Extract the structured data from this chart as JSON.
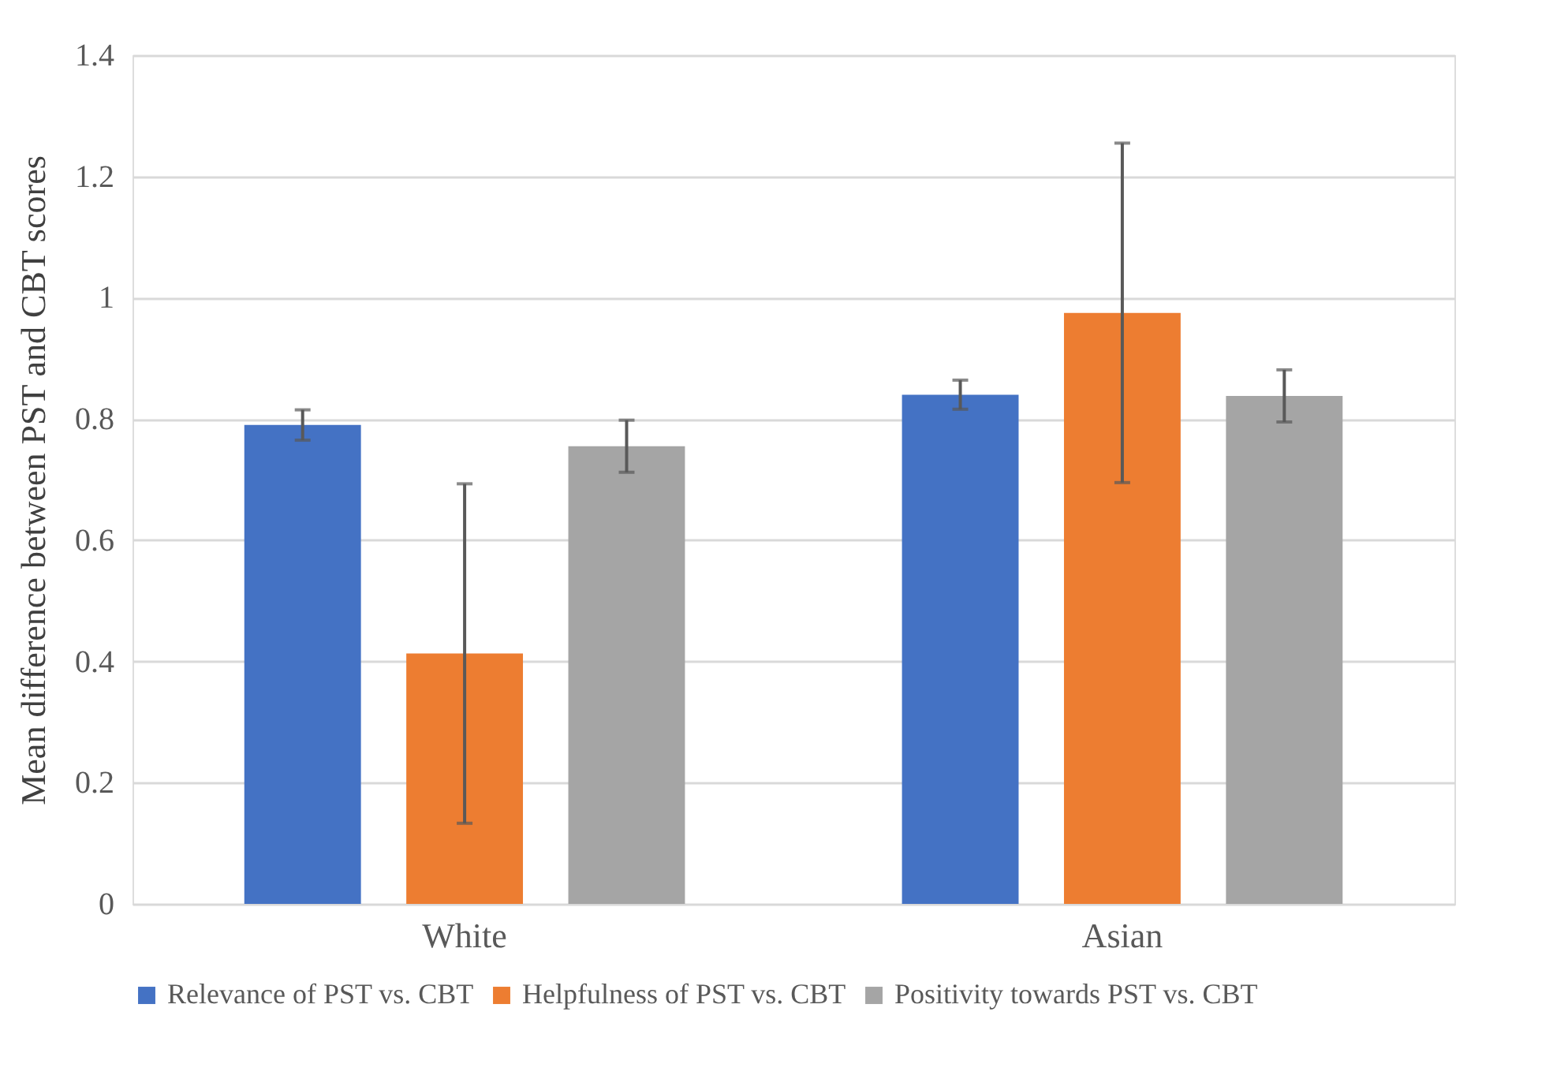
{
  "chart_data": {
    "type": "bar",
    "ylabel": "Mean difference between PST and CBT scores",
    "categories": [
      "White",
      "Asian"
    ],
    "series": [
      {
        "name": "Relevance of PST vs. CBT",
        "color": "#4472c4",
        "values": [
          0.79,
          0.84
        ],
        "errors": [
          0.025,
          0.024
        ]
      },
      {
        "name": "Helpfulness of PST vs. CBT",
        "color": "#ed7d31",
        "values": [
          0.413,
          0.975
        ],
        "errors": [
          0.28,
          0.28
        ]
      },
      {
        "name": "Positivity towards PST vs. CBT",
        "color": "#a5a5a5",
        "values": [
          0.755,
          0.838
        ],
        "errors": [
          0.043,
          0.043
        ]
      }
    ],
    "ylim": [
      0,
      1.4
    ],
    "yticks": [
      0,
      0.2,
      0.4,
      0.6,
      0.8,
      1,
      1.2,
      1.4
    ],
    "grid": "y",
    "legend": "bottom"
  }
}
